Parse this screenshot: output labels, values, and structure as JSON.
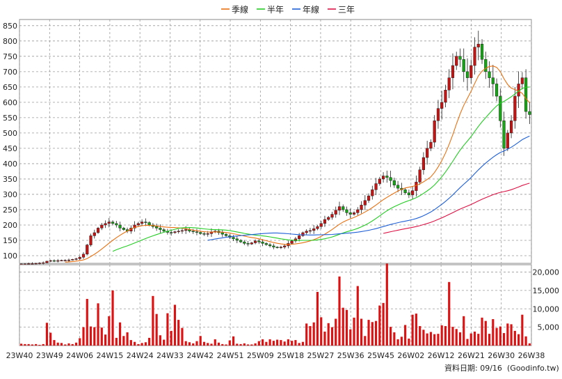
{
  "chart_data": [
    {
      "type": "candlestick",
      "panel": "price",
      "legend": [
        {
          "name": "季線",
          "color": "#e87010"
        },
        {
          "name": "半年",
          "color": "#22cc22"
        },
        {
          "name": "年線",
          "color": "#1e5fd6"
        },
        {
          "name": "三年",
          "color": "#dd1144"
        }
      ],
      "up_color": "#cc1111",
      "down_color": "#11aa11",
      "ylim": [
        75,
        870
      ],
      "yticks": [
        100,
        150,
        200,
        250,
        300,
        350,
        400,
        450,
        500,
        550,
        600,
        650,
        700,
        750,
        800,
        850
      ],
      "grid": true,
      "x_tick_labels": [
        "23W40",
        "23W49",
        "24W06",
        "24W15",
        "24W24",
        "24W33",
        "24W42",
        "24W51",
        "25W09",
        "25W18",
        "25W27",
        "25W36",
        "25W45",
        "26W02",
        "26W12",
        "26W21",
        "26W30",
        "26W38"
      ],
      "weekly_close": [
        73,
        73,
        74,
        74,
        75,
        76,
        77,
        82,
        84,
        83,
        84,
        85,
        85,
        86,
        88,
        90,
        95,
        105,
        135,
        165,
        175,
        190,
        200,
        205,
        210,
        205,
        200,
        190,
        185,
        180,
        190,
        200,
        205,
        210,
        208,
        200,
        195,
        190,
        185,
        180,
        176,
        175,
        178,
        180,
        182,
        185,
        180,
        178,
        176,
        172,
        170,
        172,
        178,
        180,
        175,
        170,
        165,
        160,
        155,
        150,
        145,
        140,
        138,
        142,
        148,
        145,
        140,
        136,
        132,
        128,
        126,
        128,
        132,
        140,
        148,
        155,
        165,
        175,
        180,
        182,
        188,
        195,
        205,
        218,
        225,
        235,
        248,
        260,
        250,
        240,
        235,
        240,
        250,
        265,
        280,
        295,
        315,
        335,
        350,
        360,
        355,
        345,
        330,
        320,
        315,
        305,
        298,
        312,
        340,
        380,
        420,
        450,
        470,
        540,
        580,
        600,
        640,
        680,
        720,
        750,
        740,
        700,
        680,
        720,
        780,
        790,
        740,
        700,
        680,
        660,
        620,
        540,
        450,
        500,
        540,
        620,
        660,
        680,
        570,
        560
      ]
    },
    {
      "type": "bar",
      "panel": "volume",
      "color": "#dd1111",
      "ylim": [
        0,
        22000
      ],
      "yticks": [
        5000,
        10000,
        15000,
        20000
      ],
      "ytick_labels": [
        "5,000",
        "10,000",
        "15,000",
        "20,000"
      ],
      "values": [
        500,
        400,
        400,
        300,
        400,
        200,
        400,
        6200,
        3500,
        1500,
        800,
        700,
        300,
        600,
        400,
        800,
        2000,
        5000,
        12700,
        5200,
        5000,
        11500,
        4900,
        3000,
        8000,
        15000,
        2100,
        6300,
        2600,
        3600,
        1500,
        1000,
        400,
        700,
        900,
        2100,
        13500,
        8600,
        2800,
        1600,
        8800,
        4000,
        11100,
        7000,
        4800,
        1200,
        900,
        600,
        1200,
        2600,
        1000,
        700,
        500,
        1700,
        800,
        400,
        300,
        1400,
        2500,
        500,
        400,
        600,
        300,
        300,
        600,
        1200,
        1700,
        1000,
        1700,
        1300,
        1600,
        1500,
        1100,
        1700,
        1300,
        1500,
        700,
        1000,
        6000,
        5300,
        6300,
        14600,
        7700,
        3800,
        6100,
        5000,
        7300,
        18800,
        10300,
        9700,
        4400,
        7600,
        16200,
        7300,
        2600,
        7000,
        6400,
        6700,
        10900,
        11600,
        22300,
        5100,
        3600,
        1700,
        2400,
        5600,
        1900,
        8400,
        8700,
        5300,
        4300,
        3300,
        3700,
        3100,
        3200,
        5500,
        5300,
        17300,
        5100,
        4500,
        3600,
        8000,
        1800,
        3300,
        3800,
        3200,
        7600,
        6700,
        3200,
        7200,
        4800,
        5200,
        3400,
        6000,
        5800,
        4000,
        3100,
        8400,
        2500,
        600
      ]
    }
  ],
  "date_note": "資料日期: 09/16",
  "source": "(Goodinfo.tw)"
}
